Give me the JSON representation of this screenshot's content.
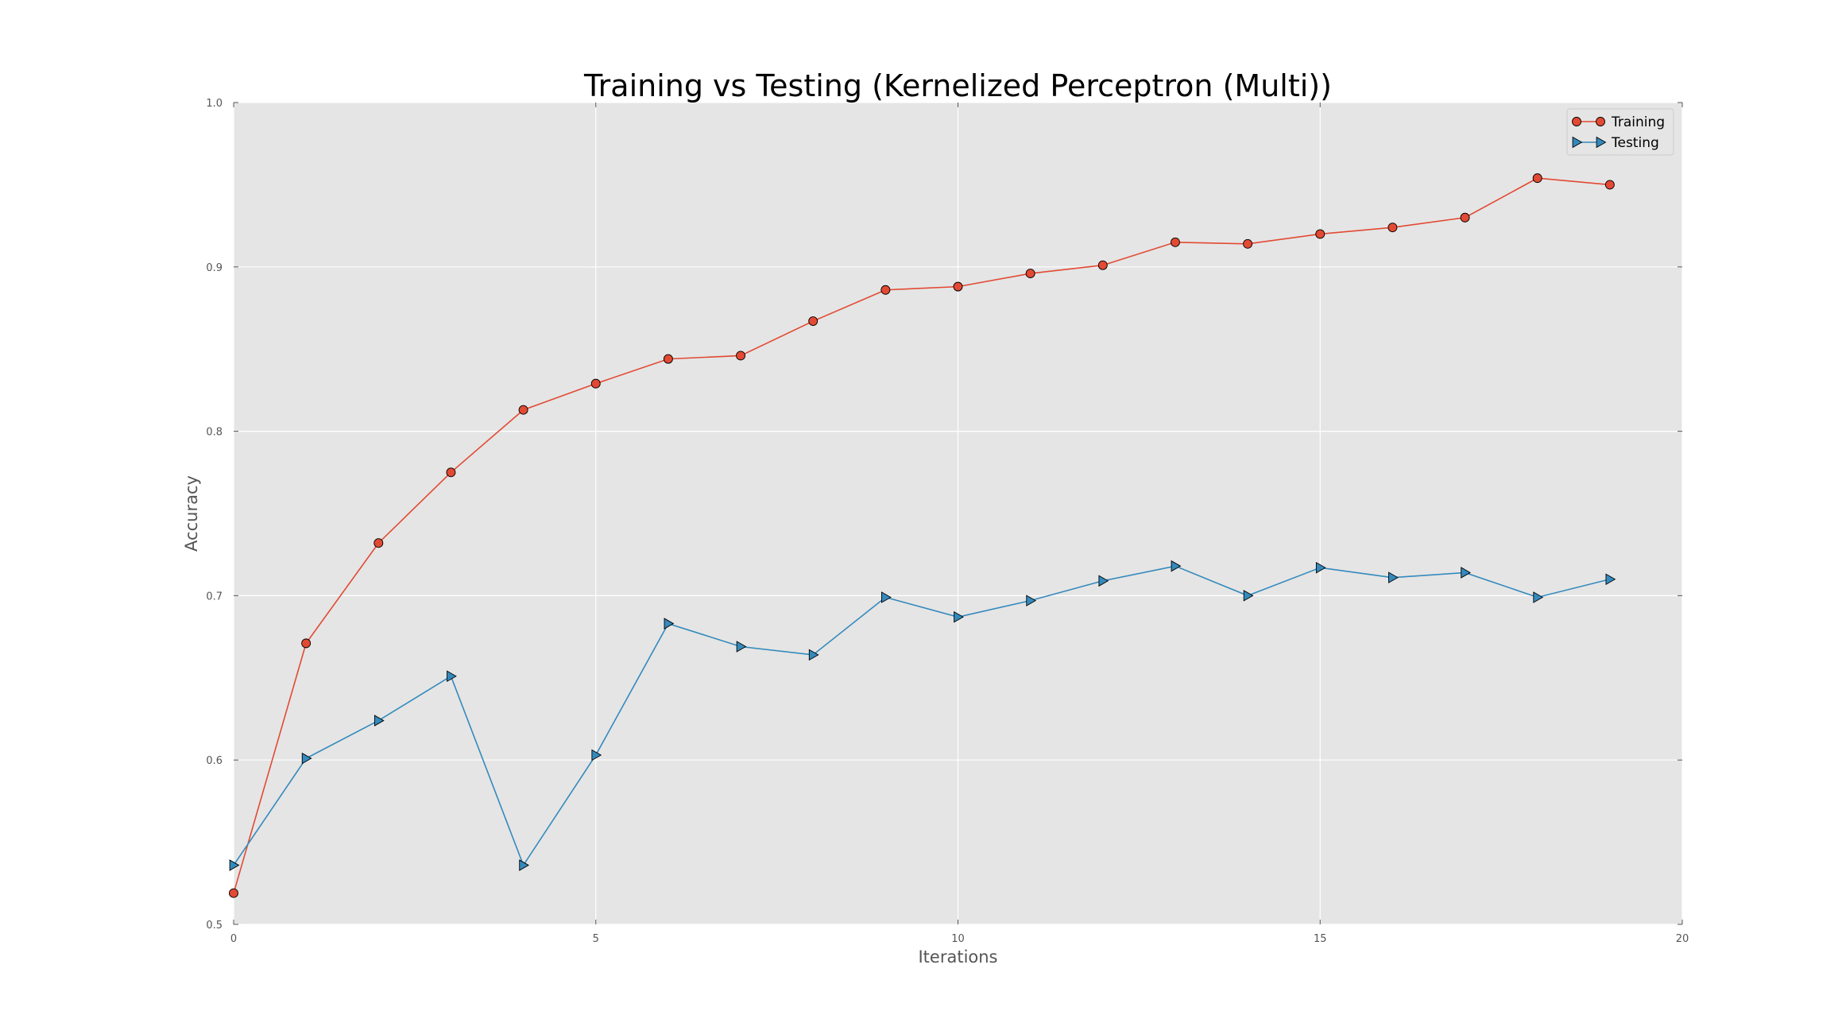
{
  "chart_data": {
    "type": "line",
    "title": "Training vs Testing (Kernelized Perceptron (Multi))",
    "xlabel": "Iterations",
    "ylabel": "Accuracy",
    "xlim": [
      0,
      20
    ],
    "ylim": [
      0.5,
      1.0
    ],
    "grid": true,
    "legend_position": "top-right",
    "x_ticks": [
      0,
      5,
      10,
      15,
      20
    ],
    "x_tick_labels": [
      "0",
      "5",
      "10",
      "15",
      "20"
    ],
    "y_ticks": [
      0.5,
      0.6,
      0.7,
      0.8,
      0.9,
      1.0
    ],
    "y_tick_labels": [
      "0.5",
      "0.6",
      "0.7",
      "0.8",
      "0.9",
      "1.0"
    ],
    "x": [
      0,
      1,
      2,
      3,
      4,
      5,
      6,
      7,
      8,
      9,
      10,
      11,
      12,
      13,
      14,
      15,
      16,
      17,
      18,
      19
    ],
    "series": [
      {
        "name": "Training",
        "marker": "circle",
        "color": "#e24a33",
        "values": [
          0.519,
          0.671,
          0.732,
          0.775,
          0.813,
          0.829,
          0.844,
          0.846,
          0.867,
          0.886,
          0.888,
          0.896,
          0.901,
          0.915,
          0.914,
          0.92,
          0.924,
          0.93,
          0.954,
          0.95
        ]
      },
      {
        "name": "Testing",
        "marker": "triangle-right",
        "color": "#348abd",
        "values": [
          0.536,
          0.601,
          0.624,
          0.651,
          0.536,
          0.603,
          0.683,
          0.669,
          0.664,
          0.699,
          0.687,
          0.697,
          0.709,
          0.718,
          0.7,
          0.717,
          0.711,
          0.714,
          0.699,
          0.71
        ]
      }
    ]
  },
  "colors": {
    "plot_background": "#e5e5e5",
    "grid": "#ffffff",
    "tick_text": "#555555"
  }
}
